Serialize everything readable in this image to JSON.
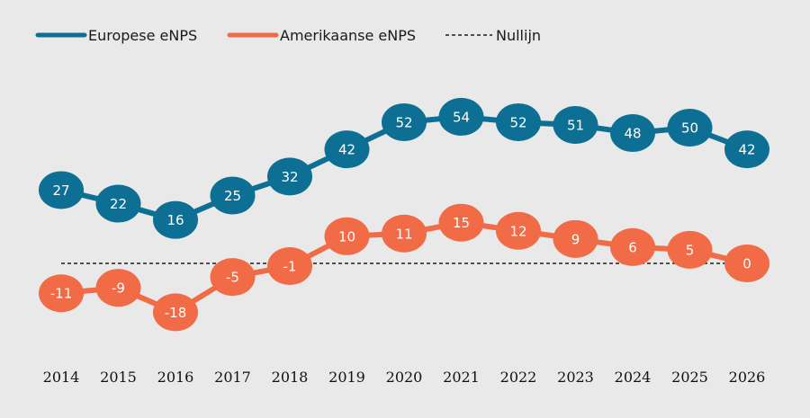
{
  "chart_data": {
    "type": "line",
    "x": [
      "2014",
      "2015",
      "2016",
      "2017",
      "2018",
      "2019",
      "2020",
      "2021",
      "2022",
      "2023",
      "2024",
      "2025",
      "2026"
    ],
    "series": [
      {
        "name": "Europese eNPS",
        "color": "#0e6f94",
        "values": [
          27,
          22,
          16,
          25,
          32,
          42,
          52,
          54,
          52,
          51,
          48,
          50,
          42
        ],
        "labels": [
          "27",
          "22",
          "16",
          "25",
          "32",
          "42",
          "52",
          "54",
          "52",
          "51",
          "48",
          "50",
          "42"
        ]
      },
      {
        "name": "Amerikaanse eNPS",
        "color": "#f06b46",
        "values": [
          -11,
          -9,
          -18,
          -5,
          -1,
          10,
          11,
          15,
          12,
          9,
          6,
          5,
          0
        ],
        "labels": [
          "-11",
          "-9",
          "-18",
          "-5",
          "-1",
          "10",
          "11",
          "15",
          "12",
          "9",
          "6",
          "5",
          "0"
        ]
      }
    ],
    "reference_line": {
      "name": "Nullijn",
      "value": 0,
      "style": "dashed",
      "color": "#1a1a1a"
    },
    "ylim": [
      -25,
      60
    ],
    "grid": false,
    "legend_position": "top-left"
  }
}
